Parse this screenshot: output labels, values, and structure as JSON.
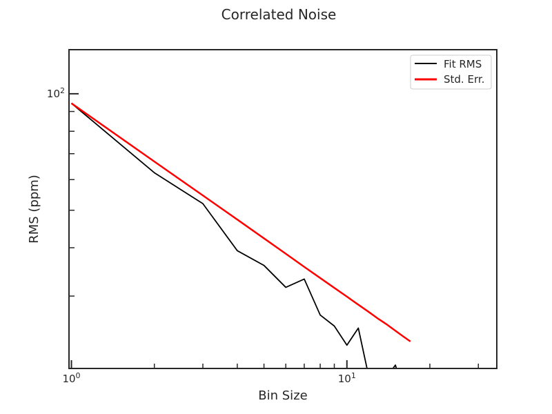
{
  "chart_data": {
    "type": "line",
    "title": "Correlated Noise",
    "xlabel": "Bin Size",
    "ylabel": "RMS (ppm)",
    "xscale": "log",
    "yscale": "log",
    "xlim": [
      0.98,
      35
    ],
    "ylim": [
      19.5,
      130
    ],
    "x_tick_labels": [
      {
        "value": 1,
        "base": "10",
        "exp": "0"
      },
      {
        "value": 10,
        "base": "10",
        "exp": "1"
      }
    ],
    "y_tick_labels": [
      {
        "value": 100,
        "base": "10",
        "exp": "2"
      }
    ],
    "x_minor_ticks": [
      2,
      3,
      4,
      5,
      6,
      7,
      8,
      9,
      20,
      30
    ],
    "y_minor_ticks": [
      30,
      40,
      50,
      60,
      70,
      80,
      90
    ],
    "legend_position": "top-right",
    "grid": false,
    "series": [
      {
        "name": "Fit RMS",
        "color": "#000000",
        "x": [
          1,
          2,
          3,
          4,
          5,
          6,
          7,
          8,
          9,
          10,
          11,
          12,
          13,
          14,
          15,
          16,
          17
        ],
        "y": [
          94.5,
          62.5,
          52.0,
          39.3,
          36.0,
          31.6,
          33.2,
          26.8,
          25.1,
          22.4,
          24.8,
          18.6,
          18.6,
          18.6,
          19.9,
          16.9,
          17.9
        ]
      },
      {
        "name": "Std. Err.",
        "color": "#ff0000",
        "x": [
          1,
          2,
          3,
          4,
          5,
          6,
          7,
          8,
          9,
          10,
          11,
          12,
          13,
          14,
          15,
          16,
          17
        ],
        "y": [
          94.5,
          66.8,
          54.6,
          47.3,
          42.3,
          38.6,
          35.7,
          33.4,
          31.5,
          29.9,
          28.5,
          27.3,
          26.2,
          25.3,
          24.4,
          23.6,
          22.9
        ]
      }
    ]
  }
}
